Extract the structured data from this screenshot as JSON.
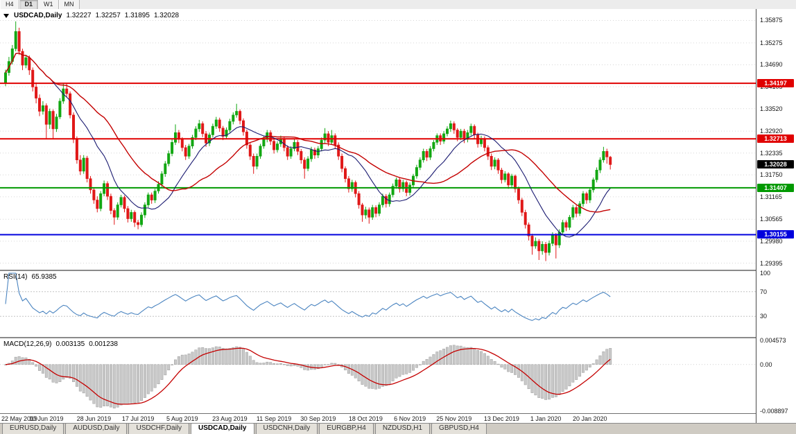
{
  "timeframe_toolbar": {
    "items": [
      {
        "label": "H4",
        "active": false
      },
      {
        "label": "D1",
        "active": true
      },
      {
        "label": "W1",
        "active": false
      },
      {
        "label": "MN",
        "active": false
      }
    ]
  },
  "chart": {
    "symbol_title": "USDCAD,Daily",
    "ohlc": {
      "open": "1.32227",
      "high": "1.32257",
      "low": "1.31895",
      "close": "1.32028"
    },
    "colors": {
      "candle_up": "#12a712",
      "candle_down": "#e01818",
      "grid": "#d6d6d6",
      "current_price_badge": "#000000"
    }
  },
  "chart_data": {
    "type": "candlestick",
    "symbol": "USDCAD",
    "period": "Daily",
    "price_axis_ticks": [
      "1.35875",
      "1.35275",
      "1.34690",
      "1.34105",
      "1.33520",
      "1.32920",
      "1.32335",
      "1.31750",
      "1.31165",
      "1.30565",
      "1.29980",
      "1.29395"
    ],
    "time_axis": [
      {
        "label": "22 May 2019",
        "bar": 0
      },
      {
        "label": "10 Jun 2019",
        "bar": 12
      },
      {
        "label": "28 Jun 2019",
        "bar": 26
      },
      {
        "label": "17 Jul 2019",
        "bar": 39
      },
      {
        "label": "5 Aug 2019",
        "bar": 52
      },
      {
        "label": "23 Aug 2019",
        "bar": 66
      },
      {
        "label": "11 Sep 2019",
        "bar": 79
      },
      {
        "label": "30 Sep 2019",
        "bar": 92
      },
      {
        "label": "18 Oct 2019",
        "bar": 106
      },
      {
        "label": "6 Nov 2019",
        "bar": 119
      },
      {
        "label": "25 Nov 2019",
        "bar": 132
      },
      {
        "label": "13 Dec 2019",
        "bar": 146
      },
      {
        "label": "1 Jan 2020",
        "bar": 159
      },
      {
        "label": "20 Jan 2020",
        "bar": 172
      }
    ],
    "levels": [
      {
        "price": 1.34197,
        "label": "1.34197",
        "color": "#e00000"
      },
      {
        "price": 1.32713,
        "label": "1.32713",
        "color": "#e00000"
      },
      {
        "price": 1.31407,
        "label": "1.31407",
        "color": "#009900"
      },
      {
        "price": 1.30155,
        "label": "1.30155",
        "color": "#0000dd"
      }
    ],
    "current_price": {
      "value": 1.32028,
      "label": "1.32028"
    },
    "moving_averages": [
      {
        "period": 14,
        "color": "#191970"
      },
      {
        "period": 30,
        "color": "#c40000"
      }
    ],
    "rsi": {
      "label": "RSI(14)",
      "value": "65.9385",
      "period": 14,
      "levels": [
        70,
        30
      ],
      "axis_ticks": [
        "100",
        "70",
        "30"
      ],
      "color": "#4a84c0",
      "range": [
        0,
        100
      ]
    },
    "macd": {
      "label": "MACD(12,26,9)",
      "value_main": "0.003135",
      "value_signal": "0.001238",
      "fast": 12,
      "slow": 26,
      "signal": 9,
      "axis_ticks": [
        {
          "label": "0.004573",
          "value": 0.004573
        },
        {
          "label": "0.00",
          "value": 0
        },
        {
          "label": "-0.008897",
          "value": -0.008897
        }
      ],
      "range_top": 0.0046,
      "range_bottom": -0.0089,
      "histogram_fill": "#c9c9c9",
      "histogram_stroke": "#9b9b9b",
      "signal_color": "#c40000"
    },
    "candles_ohlc": [
      [
        1.342,
        1.3456,
        1.3412,
        1.3448
      ],
      [
        1.3448,
        1.349,
        1.344,
        1.3478
      ],
      [
        1.3478,
        1.3522,
        1.347,
        1.3512
      ],
      [
        1.3512,
        1.3585,
        1.3505,
        1.3558
      ],
      [
        1.3558,
        1.3568,
        1.3495,
        1.3505
      ],
      [
        1.3505,
        1.3512,
        1.3455,
        1.3468
      ],
      [
        1.3468,
        1.3496,
        1.346,
        1.3488
      ],
      [
        1.3488,
        1.3494,
        1.3442,
        1.3455
      ],
      [
        1.3455,
        1.3462,
        1.3398,
        1.341
      ],
      [
        1.341,
        1.3422,
        1.3366,
        1.338
      ],
      [
        1.338,
        1.339,
        1.3332,
        1.3345
      ],
      [
        1.3345,
        1.3372,
        1.3336,
        1.336
      ],
      [
        1.336,
        1.3366,
        1.3272,
        1.331
      ],
      [
        1.331,
        1.3352,
        1.3298,
        1.3345
      ],
      [
        1.3345,
        1.335,
        1.327,
        1.3298
      ],
      [
        1.3298,
        1.3338,
        1.329,
        1.333
      ],
      [
        1.333,
        1.338,
        1.3324,
        1.3372
      ],
      [
        1.3372,
        1.342,
        1.3365,
        1.3405
      ],
      [
        1.3405,
        1.3418,
        1.3382,
        1.3392
      ],
      [
        1.3392,
        1.3398,
        1.3326,
        1.3335
      ],
      [
        1.3335,
        1.3342,
        1.326,
        1.327
      ],
      [
        1.327,
        1.3278,
        1.3205,
        1.3215
      ],
      [
        1.3215,
        1.3228,
        1.3175,
        1.3185
      ],
      [
        1.3185,
        1.3228,
        1.3178,
        1.322
      ],
      [
        1.322,
        1.3226,
        1.3155,
        1.3165
      ],
      [
        1.3165,
        1.3172,
        1.3125,
        1.3135
      ],
      [
        1.3135,
        1.3142,
        1.3098,
        1.3108
      ],
      [
        1.3108,
        1.3118,
        1.3075,
        1.3085
      ],
      [
        1.3085,
        1.3132,
        1.3078,
        1.3125
      ],
      [
        1.3125,
        1.316,
        1.3118,
        1.3152
      ],
      [
        1.3152,
        1.3158,
        1.3108,
        1.3118
      ],
      [
        1.3118,
        1.3125,
        1.307,
        1.308
      ],
      [
        1.308,
        1.3086,
        1.3042,
        1.3062
      ],
      [
        1.3062,
        1.3102,
        1.3055,
        1.3095
      ],
      [
        1.3095,
        1.3122,
        1.3088,
        1.3115
      ],
      [
        1.3115,
        1.312,
        1.3075,
        1.3085
      ],
      [
        1.3085,
        1.3092,
        1.3048,
        1.3058
      ],
      [
        1.3058,
        1.3082,
        1.305,
        1.3075
      ],
      [
        1.3075,
        1.308,
        1.3036,
        1.3048
      ],
      [
        1.3048,
        1.3055,
        1.303,
        1.3042
      ],
      [
        1.3042,
        1.3075,
        1.3036,
        1.3068
      ],
      [
        1.3068,
        1.3102,
        1.306,
        1.3095
      ],
      [
        1.3095,
        1.3128,
        1.3088,
        1.3122
      ],
      [
        1.3122,
        1.3128,
        1.3098,
        1.3108
      ],
      [
        1.3108,
        1.3138,
        1.31,
        1.3132
      ],
      [
        1.3132,
        1.3158,
        1.3125,
        1.315
      ],
      [
        1.315,
        1.3185,
        1.3142,
        1.3178
      ],
      [
        1.3178,
        1.3212,
        1.317,
        1.3205
      ],
      [
        1.3205,
        1.324,
        1.3198,
        1.3232
      ],
      [
        1.3232,
        1.327,
        1.3225,
        1.3262
      ],
      [
        1.3262,
        1.331,
        1.3255,
        1.3288
      ],
      [
        1.3288,
        1.3295,
        1.326,
        1.327
      ],
      [
        1.327,
        1.3276,
        1.3238,
        1.3248
      ],
      [
        1.3248,
        1.3255,
        1.3215,
        1.3225
      ],
      [
        1.3225,
        1.3258,
        1.3218,
        1.3252
      ],
      [
        1.3252,
        1.3282,
        1.3245,
        1.3275
      ],
      [
        1.3275,
        1.3305,
        1.3268,
        1.3298
      ],
      [
        1.3298,
        1.3322,
        1.329,
        1.3312
      ],
      [
        1.3312,
        1.3318,
        1.3276,
        1.3285
      ],
      [
        1.3285,
        1.3292,
        1.325,
        1.326
      ],
      [
        1.326,
        1.3288,
        1.3252,
        1.3282
      ],
      [
        1.3282,
        1.3312,
        1.3275,
        1.3305
      ],
      [
        1.3305,
        1.333,
        1.3298,
        1.3322
      ],
      [
        1.3322,
        1.3328,
        1.329,
        1.33
      ],
      [
        1.33,
        1.3306,
        1.3268,
        1.3278
      ],
      [
        1.3278,
        1.3302,
        1.327,
        1.3295
      ],
      [
        1.3295,
        1.3325,
        1.3288,
        1.3318
      ],
      [
        1.3318,
        1.3342,
        1.331,
        1.3335
      ],
      [
        1.3335,
        1.3365,
        1.3328,
        1.3345
      ],
      [
        1.3345,
        1.335,
        1.331,
        1.332
      ],
      [
        1.332,
        1.3326,
        1.328,
        1.329
      ],
      [
        1.329,
        1.3296,
        1.3245,
        1.3255
      ],
      [
        1.3255,
        1.3262,
        1.3215,
        1.3225
      ],
      [
        1.3225,
        1.3232,
        1.3178,
        1.3198
      ],
      [
        1.3198,
        1.3232,
        1.319,
        1.3225
      ],
      [
        1.3225,
        1.3258,
        1.3218,
        1.3252
      ],
      [
        1.3252,
        1.3278,
        1.3245,
        1.327
      ],
      [
        1.327,
        1.3295,
        1.3262,
        1.3288
      ],
      [
        1.3288,
        1.3294,
        1.3255,
        1.3265
      ],
      [
        1.3265,
        1.3272,
        1.3232,
        1.3242
      ],
      [
        1.3242,
        1.3265,
        1.3235,
        1.3258
      ],
      [
        1.3258,
        1.328,
        1.325,
        1.3272
      ],
      [
        1.3272,
        1.3278,
        1.3238,
        1.3248
      ],
      [
        1.3248,
        1.3254,
        1.3215,
        1.3225
      ],
      [
        1.3225,
        1.3252,
        1.3218,
        1.3245
      ],
      [
        1.3245,
        1.327,
        1.3238,
        1.3262
      ],
      [
        1.3262,
        1.3268,
        1.3228,
        1.3238
      ],
      [
        1.3238,
        1.3244,
        1.3205,
        1.3215
      ],
      [
        1.3215,
        1.3222,
        1.3165,
        1.3192
      ],
      [
        1.3192,
        1.3225,
        1.3185,
        1.3218
      ],
      [
        1.3218,
        1.325,
        1.321,
        1.3242
      ],
      [
        1.3242,
        1.3248,
        1.3218,
        1.3228
      ],
      [
        1.3228,
        1.3252,
        1.322,
        1.3245
      ],
      [
        1.3245,
        1.3275,
        1.3238,
        1.3268
      ],
      [
        1.3268,
        1.33,
        1.326,
        1.3285
      ],
      [
        1.3285,
        1.3292,
        1.3252,
        1.3262
      ],
      [
        1.3262,
        1.3295,
        1.3255,
        1.328
      ],
      [
        1.328,
        1.3286,
        1.3245,
        1.3255
      ],
      [
        1.3255,
        1.3262,
        1.3215,
        1.3225
      ],
      [
        1.3225,
        1.3232,
        1.3182,
        1.3192
      ],
      [
        1.3192,
        1.3198,
        1.3155,
        1.3165
      ],
      [
        1.3165,
        1.3172,
        1.3128,
        1.3138
      ],
      [
        1.3138,
        1.3162,
        1.313,
        1.3155
      ],
      [
        1.3155,
        1.316,
        1.3115,
        1.3125
      ],
      [
        1.3125,
        1.3132,
        1.3085,
        1.3095
      ],
      [
        1.3095,
        1.31,
        1.305,
        1.3068
      ],
      [
        1.3068,
        1.309,
        1.3058,
        1.3082
      ],
      [
        1.3082,
        1.3088,
        1.3045,
        1.3062
      ],
      [
        1.3062,
        1.3095,
        1.3055,
        1.3088
      ],
      [
        1.3088,
        1.3094,
        1.3062,
        1.3072
      ],
      [
        1.3072,
        1.3102,
        1.3065,
        1.3095
      ],
      [
        1.3095,
        1.3125,
        1.3088,
        1.3118
      ],
      [
        1.3118,
        1.3124,
        1.3088,
        1.3098
      ],
      [
        1.3098,
        1.3128,
        1.309,
        1.3122
      ],
      [
        1.3122,
        1.3152,
        1.3115,
        1.3145
      ],
      [
        1.3145,
        1.3168,
        1.3138,
        1.3162
      ],
      [
        1.3162,
        1.3168,
        1.3128,
        1.3138
      ],
      [
        1.3138,
        1.3162,
        1.313,
        1.3155
      ],
      [
        1.3155,
        1.316,
        1.3118,
        1.3128
      ],
      [
        1.3128,
        1.3155,
        1.312,
        1.3148
      ],
      [
        1.3148,
        1.3178,
        1.314,
        1.3172
      ],
      [
        1.3172,
        1.3202,
        1.3165,
        1.3195
      ],
      [
        1.3195,
        1.3222,
        1.3188,
        1.3215
      ],
      [
        1.3215,
        1.3245,
        1.3208,
        1.3238
      ],
      [
        1.3238,
        1.3244,
        1.3212,
        1.3222
      ],
      [
        1.3222,
        1.3252,
        1.3215,
        1.3245
      ],
      [
        1.3245,
        1.3268,
        1.3238,
        1.3262
      ],
      [
        1.3262,
        1.3286,
        1.3255,
        1.328
      ],
      [
        1.328,
        1.3286,
        1.3255,
        1.3265
      ],
      [
        1.3265,
        1.3292,
        1.3258,
        1.3285
      ],
      [
        1.3285,
        1.3305,
        1.3278,
        1.3298
      ],
      [
        1.3298,
        1.332,
        1.329,
        1.3312
      ],
      [
        1.3312,
        1.3318,
        1.3285,
        1.3295
      ],
      [
        1.3295,
        1.33,
        1.3265,
        1.3275
      ],
      [
        1.3275,
        1.3298,
        1.3268,
        1.3292
      ],
      [
        1.3292,
        1.3298,
        1.326,
        1.327
      ],
      [
        1.327,
        1.3295,
        1.3262,
        1.3288
      ],
      [
        1.3288,
        1.3312,
        1.328,
        1.3305
      ],
      [
        1.3305,
        1.331,
        1.3272,
        1.3282
      ],
      [
        1.3282,
        1.3288,
        1.3248,
        1.3258
      ],
      [
        1.3258,
        1.328,
        1.325,
        1.3272
      ],
      [
        1.3272,
        1.3278,
        1.3238,
        1.3248
      ],
      [
        1.3248,
        1.3254,
        1.3215,
        1.3225
      ],
      [
        1.3225,
        1.3232,
        1.3188,
        1.3198
      ],
      [
        1.3198,
        1.3222,
        1.319,
        1.3215
      ],
      [
        1.3215,
        1.322,
        1.3178,
        1.3188
      ],
      [
        1.3188,
        1.3194,
        1.3152,
        1.3162
      ],
      [
        1.3162,
        1.3185,
        1.3155,
        1.3178
      ],
      [
        1.3178,
        1.3182,
        1.3138,
        1.3148
      ],
      [
        1.3148,
        1.3178,
        1.3142,
        1.3172
      ],
      [
        1.3172,
        1.3176,
        1.3128,
        1.3138
      ],
      [
        1.3138,
        1.3144,
        1.3098,
        1.3108
      ],
      [
        1.3108,
        1.3114,
        1.3065,
        1.3075
      ],
      [
        1.3075,
        1.3082,
        1.3032,
        1.3042
      ],
      [
        1.3042,
        1.3048,
        1.3,
        1.3012
      ],
      [
        1.3012,
        1.3018,
        1.2962,
        1.2985
      ],
      [
        1.2985,
        1.3008,
        1.2978,
        1.2998
      ],
      [
        1.2998,
        1.3004,
        1.2948,
        1.2972
      ],
      [
        1.2972,
        1.2998,
        1.2962,
        1.299
      ],
      [
        1.299,
        1.2996,
        1.2945,
        1.2968
      ],
      [
        1.2968,
        1.3,
        1.296,
        1.2992
      ],
      [
        1.2992,
        1.3022,
        1.2985,
        1.3015
      ],
      [
        1.3015,
        1.302,
        1.2952,
        1.2988
      ],
      [
        1.2988,
        1.303,
        1.298,
        1.3022
      ],
      [
        1.3022,
        1.3055,
        1.3015,
        1.3048
      ],
      [
        1.3048,
        1.3054,
        1.3025,
        1.3035
      ],
      [
        1.3035,
        1.3068,
        1.3028,
        1.3062
      ],
      [
        1.3062,
        1.3095,
        1.3055,
        1.3088
      ],
      [
        1.3088,
        1.3094,
        1.3062,
        1.3072
      ],
      [
        1.3072,
        1.3105,
        1.3065,
        1.3098
      ],
      [
        1.3098,
        1.3132,
        1.309,
        1.3125
      ],
      [
        1.3125,
        1.313,
        1.3098,
        1.3108
      ],
      [
        1.3108,
        1.3142,
        1.31,
        1.3135
      ],
      [
        1.3135,
        1.3168,
        1.3128,
        1.3162
      ],
      [
        1.3162,
        1.3195,
        1.3155,
        1.3188
      ],
      [
        1.3188,
        1.3222,
        1.318,
        1.3215
      ],
      [
        1.3215,
        1.325,
        1.3208,
        1.3238
      ],
      [
        1.3238,
        1.3245,
        1.3205,
        1.3223
      ],
      [
        1.32227,
        1.32257,
        1.31895,
        1.32028
      ]
    ]
  },
  "bottom_tabs": {
    "items": [
      "EURUSD,Daily",
      "AUDUSD,Daily",
      "USDCHF,Daily",
      "USDCAD,Daily",
      "USDCNH,Daily",
      "EURGBP,H4",
      "NZDUSD,H1",
      "GBPUSD,H4"
    ],
    "active_index": 3
  }
}
